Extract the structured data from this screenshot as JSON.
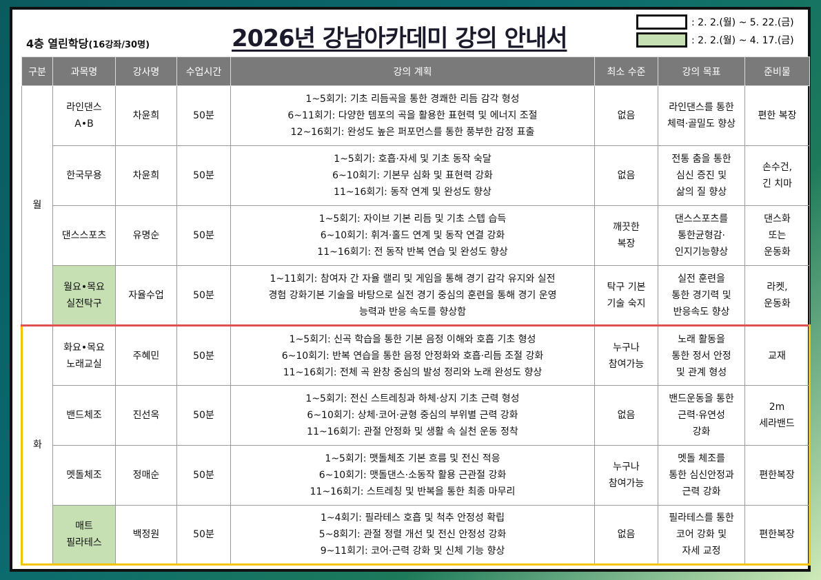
{
  "subtitle": {
    "main": "4층 열린학당",
    "sub": "(16강좌/30명)"
  },
  "title": "2026년 강남아카데미 강의 안내서",
  "legend": [
    {
      "color": "#ffffff",
      "text": ": 2. 2.(월) ~ 5. 22.(금)"
    },
    {
      "color": "#c6e0b4",
      "text": ": 2. 2.(월) ~ 4. 17.(금)"
    }
  ],
  "headers": [
    "구분",
    "과목명",
    "강사명",
    "수업시간",
    "강의 계획",
    "최소 수준",
    "강의 목표",
    "준비물"
  ],
  "groups": [
    {
      "day": "월",
      "rows": [
        {
          "subject": "라인댄스\nA•B",
          "teacher": "차윤희",
          "time": "50분",
          "plan": "1~5회기: 기초 리듬곡을 통한 경쾌한 리듬 감각 형성\n6~11회기: 다양한 템포의 곡을 활용한 표현력 및 에너지 조절\n12~16회기: 완성도 높은 퍼포먼스를 통한 풍부한 감정 표출",
          "level": "없음",
          "goal": "라인댄스를 통한\n체력·골밀도 향상",
          "supplies": "편한 복장",
          "green": false
        },
        {
          "subject": "한국무용",
          "teacher": "차윤희",
          "time": "50분",
          "plan": "1~5회기: 호흡·자세 및 기초 동작 숙달\n6~10회기: 기본무 심화 및 표현력 강화\n11~16회기: 동작 연계 및 완성도 향상",
          "level": "없음",
          "goal": "전통 춤을 통한\n심신 증진 및\n삶의 질 향상",
          "supplies": "손수건,\n긴 치마",
          "green": false
        },
        {
          "subject": "댄스스포츠",
          "teacher": "유명순",
          "time": "50분",
          "plan": "1~5회기: 자이브 기본 리듬 및 기초 스텝 습득\n6~10회기: 휘겨·홀드 연계 및 동작 연결 강화\n11~16회기: 전 동작 반복 연습 및 완성도 향상",
          "level": "깨끗한\n복장",
          "goal": "댄스스포츠를\n통한균형감·\n인지기능향상",
          "supplies": "댄스화\n또는\n운동화",
          "green": false
        },
        {
          "subject": "월요•목요\n실전탁구",
          "teacher": "자율수업",
          "time": "50분",
          "plan": "1~11회기: 참여자 간 자율 랠리 및 게임을 통해 경기 감각 유지와 실전\n경험 강화기본 기술을 바탕으로 실전 경기 중심의 훈련을 통해 경기 운영\n능력과 반응 속도를 향상함",
          "level": "탁구 기본\n기술 숙지",
          "goal": "실전 훈련을\n통한 경기력 및\n반응속도 향상",
          "supplies": "라켓,\n운동화",
          "green": true
        }
      ]
    },
    {
      "day": "화",
      "rows": [
        {
          "subject": "화요•목요\n노래교실",
          "teacher": "주혜민",
          "time": "50분",
          "plan": "1~5회기: 신곡 학습을 통한 기본 음정 이해와 호흡 기초 형성\n6~10회기: 반복 연습을 통한 음정 안정화와 호흡·리듬 조절 강화\n11~16회기: 전체 곡 완창 중심의 발성 정리와 노래 완성도 향상",
          "level": "누구나\n참여가능",
          "goal": "노래 활동을\n통한 정서 안정\n및 관계 형성",
          "supplies": "교재",
          "green": false
        },
        {
          "subject": "밴드체조",
          "teacher": "진선옥",
          "time": "50분",
          "plan": "1~5회기: 전신 스트레칭과 하체·상지 기초 근력 형성\n6~10회기: 상체·코어·균형 중심의 부위별 근력 강화\n11~16회기: 관절 안정화 및 생활 속 실천 운동 정착",
          "level": "없음",
          "goal": "밴드운동을 통한\n근력·유연성\n강화",
          "supplies": "2m\n세라밴드",
          "green": false
        },
        {
          "subject": "멧돌체조",
          "teacher": "정매순",
          "time": "50분",
          "plan": "1~5회기: 맷돌체조 기본 흐름 및 전신 적응\n6~10회기: 맷돌댄스·소동작 활용 근관절 강화\n11~16회기: 스트레칭 및 반복을 통한 최종 마무리",
          "level": "누구나\n참여가능",
          "goal": "멧돌 체조를\n통한 심신안정과\n근력 강화",
          "supplies": "편한복장",
          "green": false
        },
        {
          "subject": "매트\n필라테스",
          "teacher": "백정원",
          "time": "50분",
          "plan": "1~4회기: 필라테스 호흡 및 척추 안정성 확립\n5~8회기: 관절 정렬 개선 및 전신 안정성 강화\n9~11회기: 코어·근력 강화 및 신체 기능 향상",
          "level": "없음",
          "goal": "필라테스를 통한\n코어 강화 및\n자세 교정",
          "supplies": "편한복장",
          "green": true
        }
      ]
    }
  ]
}
